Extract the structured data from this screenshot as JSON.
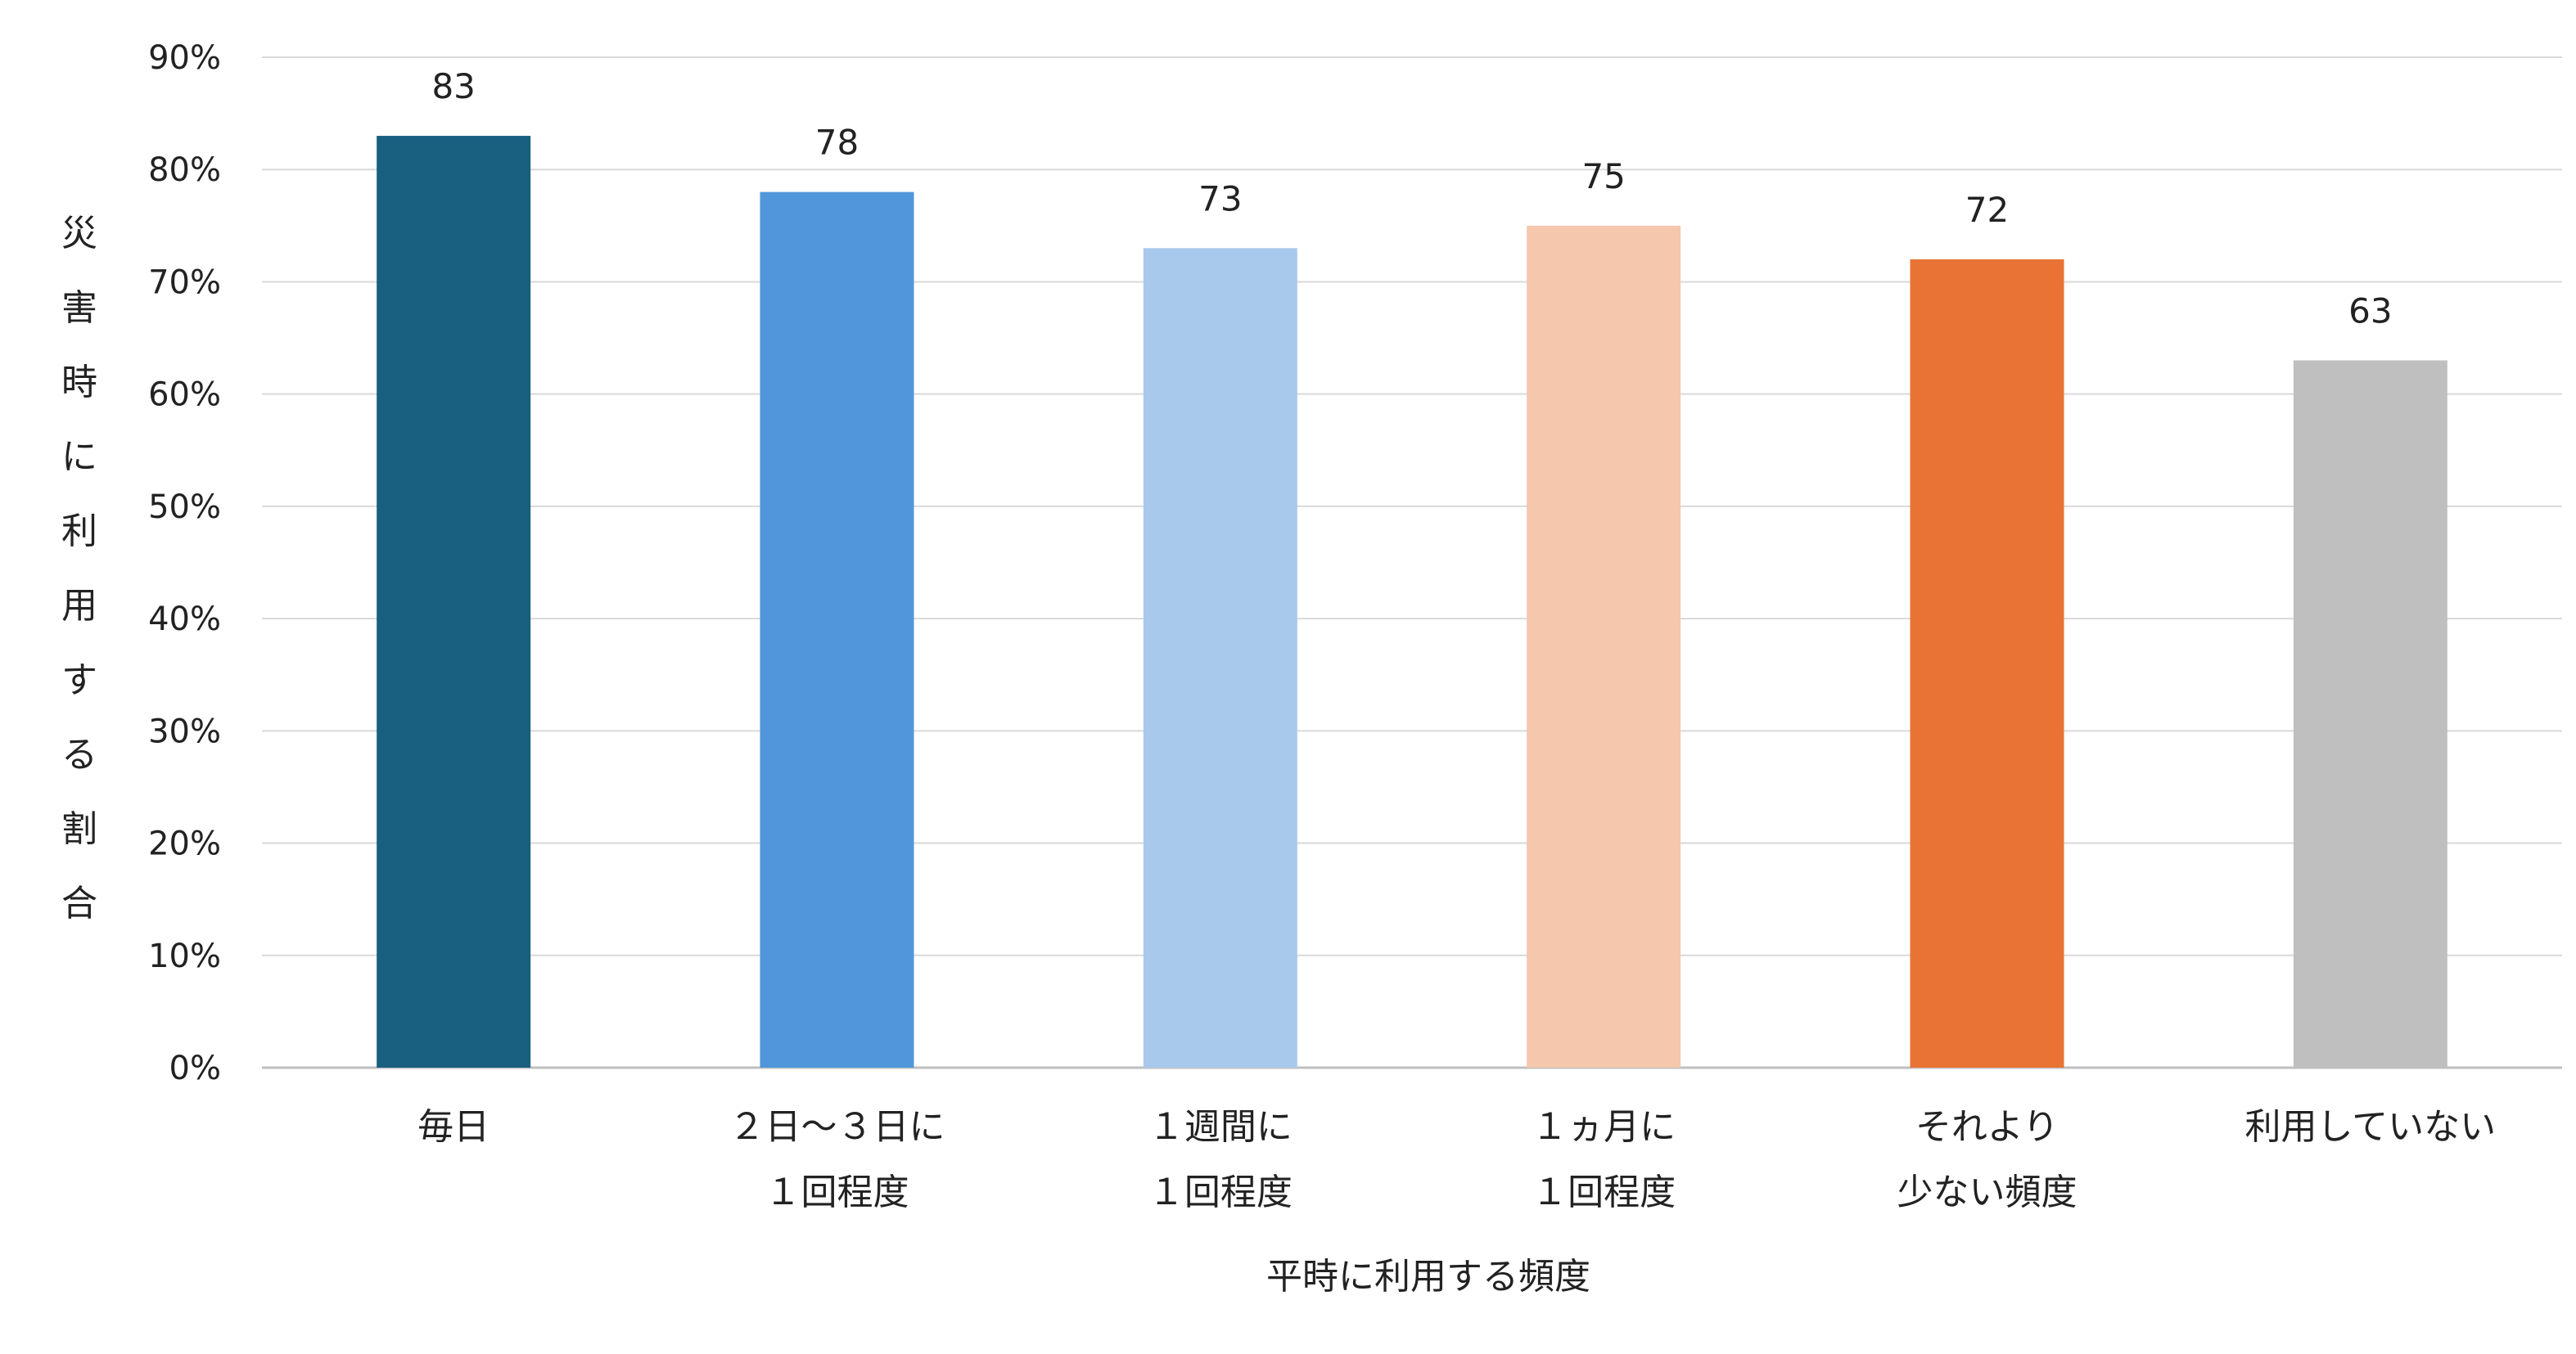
{
  "chart_data": {
    "type": "bar",
    "xlabel": "平時に利用する頻度",
    "ylabel": "災害時に利用する割合",
    "categories": [
      [
        "毎日"
      ],
      [
        "２日～３日に",
        "１回程度"
      ],
      [
        "１週間に",
        "１回程度"
      ],
      [
        "１ヵ月に",
        "１回程度"
      ],
      [
        "それより",
        "少ない頻度"
      ],
      [
        "利用していない"
      ]
    ],
    "values": [
      83,
      78,
      73,
      75,
      72,
      63
    ],
    "bar_colors": [
      "#185f80",
      "#5196da",
      "#a8c9ec",
      "#f5c7ad",
      "#e97334",
      "#bfbfbf"
    ],
    "ylim": [
      0,
      90
    ],
    "yticks": [
      "0%",
      "10%",
      "20%",
      "30%",
      "40%",
      "50%",
      "60%",
      "70%",
      "80%",
      "90%"
    ],
    "grid": true,
    "legend": "none"
  }
}
